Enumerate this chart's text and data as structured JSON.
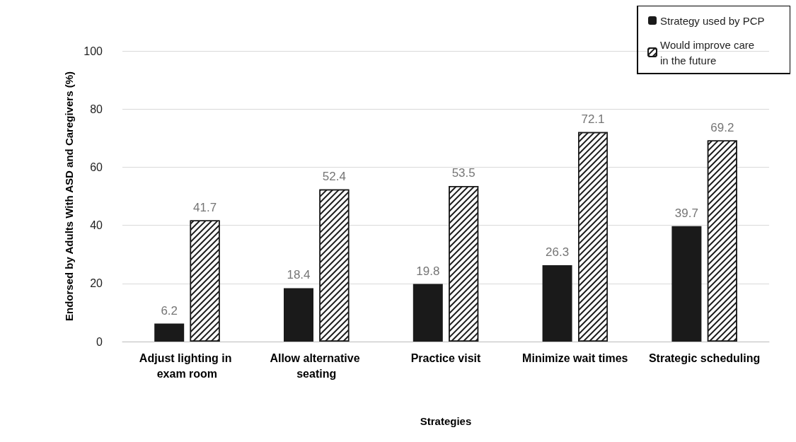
{
  "chart_data": {
    "type": "bar",
    "xlabel": "Strategies",
    "ylabel": "Endorsed by Adults With ASD and Caregivers (%)",
    "categories": [
      "Adjust lighting in exam room",
      "Allow alternative seating",
      "Practice visit",
      "Minimize wait times",
      "Strategic scheduling"
    ],
    "series": [
      {
        "name": "Strategy used by PCP",
        "color": "#1a1a1a",
        "values": [
          6.2,
          18.4,
          19.8,
          26.3,
          39.7
        ]
      },
      {
        "name": "Would improve care in the future",
        "color": "#ffffff",
        "values": [
          41.7,
          52.4,
          53.5,
          72.1,
          69.2
        ]
      }
    ],
    "ylim": [
      0,
      100
    ],
    "yticks": [
      0,
      20,
      40,
      60,
      80,
      100
    ],
    "grid": "y",
    "legend": "top right",
    "data_labels": true
  }
}
